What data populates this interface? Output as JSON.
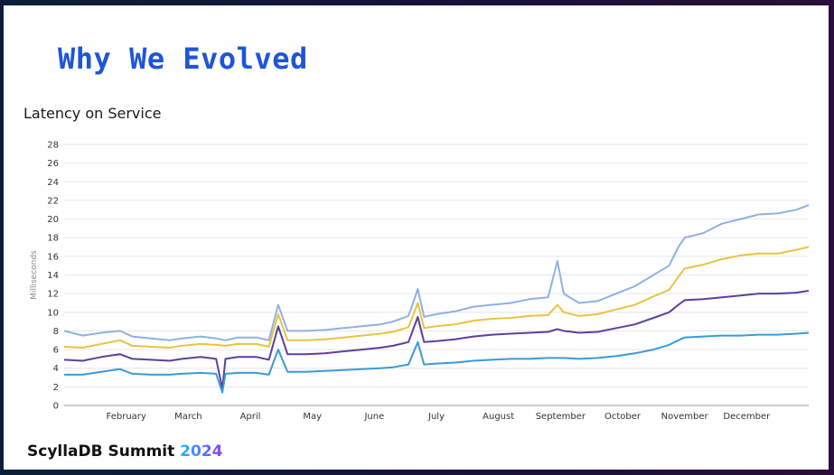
{
  "slide": {
    "title": "Why We Evolved",
    "footer_brand": "ScyllaDB Summit",
    "footer_year": "2024"
  },
  "chart_data": {
    "type": "line",
    "title": "Latency on Service",
    "ylabel": "Milliseconds",
    "xlabel": "",
    "ylim": [
      0,
      28
    ],
    "yticks": [
      0,
      2,
      4,
      6,
      8,
      10,
      12,
      14,
      16,
      18,
      20,
      22,
      24,
      26,
      28
    ],
    "x_tick_labels": [
      "February",
      "March",
      "April",
      "May",
      "June",
      "July",
      "August",
      "September",
      "October",
      "November",
      "December"
    ],
    "grid": true,
    "legend": "none",
    "x_range_months": [
      0,
      12
    ],
    "series": [
      {
        "color": "#8eb1e6",
        "points": [
          [
            0,
            8.0
          ],
          [
            0.3,
            7.5
          ],
          [
            0.6,
            7.8
          ],
          [
            0.9,
            8.0
          ],
          [
            1.1,
            7.4
          ],
          [
            1.4,
            7.2
          ],
          [
            1.7,
            7.0
          ],
          [
            1.9,
            7.2
          ],
          [
            2.2,
            7.4
          ],
          [
            2.45,
            7.2
          ],
          [
            2.6,
            7.0
          ],
          [
            2.8,
            7.3
          ],
          [
            3.1,
            7.3
          ],
          [
            3.3,
            7.0
          ],
          [
            3.45,
            10.8
          ],
          [
            3.6,
            8.0
          ],
          [
            3.9,
            8.0
          ],
          [
            4.2,
            8.1
          ],
          [
            4.5,
            8.3
          ],
          [
            4.8,
            8.5
          ],
          [
            5.1,
            8.7
          ],
          [
            5.3,
            9.0
          ],
          [
            5.55,
            9.6
          ],
          [
            5.7,
            12.5
          ],
          [
            5.8,
            9.5
          ],
          [
            6.0,
            9.8
          ],
          [
            6.3,
            10.1
          ],
          [
            6.6,
            10.6
          ],
          [
            6.9,
            10.8
          ],
          [
            7.2,
            11.0
          ],
          [
            7.5,
            11.4
          ],
          [
            7.8,
            11.6
          ],
          [
            7.95,
            15.5
          ],
          [
            8.05,
            12.0
          ],
          [
            8.3,
            11.0
          ],
          [
            8.6,
            11.2
          ],
          [
            8.9,
            12.0
          ],
          [
            9.2,
            12.8
          ],
          [
            9.5,
            14.0
          ],
          [
            9.75,
            15.0
          ],
          [
            9.9,
            17.0
          ],
          [
            10.0,
            18.0
          ],
          [
            10.3,
            18.5
          ],
          [
            10.6,
            19.5
          ],
          [
            10.9,
            20.0
          ],
          [
            11.2,
            20.5
          ],
          [
            11.5,
            20.6
          ],
          [
            11.8,
            21.0
          ],
          [
            12.0,
            21.5
          ]
        ]
      },
      {
        "color": "#e8c440",
        "points": [
          [
            0,
            6.3
          ],
          [
            0.3,
            6.2
          ],
          [
            0.6,
            6.6
          ],
          [
            0.9,
            7.0
          ],
          [
            1.1,
            6.4
          ],
          [
            1.4,
            6.3
          ],
          [
            1.7,
            6.2
          ],
          [
            1.9,
            6.4
          ],
          [
            2.2,
            6.6
          ],
          [
            2.45,
            6.5
          ],
          [
            2.6,
            6.4
          ],
          [
            2.8,
            6.6
          ],
          [
            3.1,
            6.6
          ],
          [
            3.3,
            6.3
          ],
          [
            3.45,
            9.8
          ],
          [
            3.6,
            7.0
          ],
          [
            3.9,
            7.0
          ],
          [
            4.2,
            7.1
          ],
          [
            4.5,
            7.3
          ],
          [
            4.8,
            7.5
          ],
          [
            5.1,
            7.7
          ],
          [
            5.3,
            7.9
          ],
          [
            5.55,
            8.4
          ],
          [
            5.7,
            11.0
          ],
          [
            5.8,
            8.3
          ],
          [
            6.0,
            8.5
          ],
          [
            6.3,
            8.7
          ],
          [
            6.6,
            9.1
          ],
          [
            6.9,
            9.3
          ],
          [
            7.2,
            9.4
          ],
          [
            7.5,
            9.6
          ],
          [
            7.8,
            9.7
          ],
          [
            7.95,
            10.8
          ],
          [
            8.05,
            10.0
          ],
          [
            8.3,
            9.6
          ],
          [
            8.6,
            9.8
          ],
          [
            8.9,
            10.3
          ],
          [
            9.2,
            10.8
          ],
          [
            9.5,
            11.7
          ],
          [
            9.75,
            12.4
          ],
          [
            9.9,
            13.8
          ],
          [
            10.0,
            14.7
          ],
          [
            10.3,
            15.1
          ],
          [
            10.6,
            15.7
          ],
          [
            10.9,
            16.1
          ],
          [
            11.2,
            16.3
          ],
          [
            11.5,
            16.3
          ],
          [
            11.8,
            16.7
          ],
          [
            12.0,
            17.0
          ]
        ]
      },
      {
        "color": "#5b3fa0",
        "points": [
          [
            0,
            4.9
          ],
          [
            0.3,
            4.8
          ],
          [
            0.6,
            5.2
          ],
          [
            0.9,
            5.5
          ],
          [
            1.1,
            5.0
          ],
          [
            1.4,
            4.9
          ],
          [
            1.7,
            4.8
          ],
          [
            1.9,
            5.0
          ],
          [
            2.2,
            5.2
          ],
          [
            2.45,
            5.0
          ],
          [
            2.55,
            1.8
          ],
          [
            2.6,
            5.0
          ],
          [
            2.8,
            5.2
          ],
          [
            3.1,
            5.2
          ],
          [
            3.3,
            4.9
          ],
          [
            3.45,
            8.5
          ],
          [
            3.6,
            5.5
          ],
          [
            3.9,
            5.5
          ],
          [
            4.2,
            5.6
          ],
          [
            4.5,
            5.8
          ],
          [
            4.8,
            6.0
          ],
          [
            5.1,
            6.2
          ],
          [
            5.3,
            6.4
          ],
          [
            5.55,
            6.8
          ],
          [
            5.7,
            9.5
          ],
          [
            5.8,
            6.8
          ],
          [
            6.0,
            6.9
          ],
          [
            6.3,
            7.1
          ],
          [
            6.6,
            7.4
          ],
          [
            6.9,
            7.6
          ],
          [
            7.2,
            7.7
          ],
          [
            7.5,
            7.8
          ],
          [
            7.8,
            7.9
          ],
          [
            7.95,
            8.2
          ],
          [
            8.05,
            8.0
          ],
          [
            8.3,
            7.8
          ],
          [
            8.6,
            7.9
          ],
          [
            8.9,
            8.3
          ],
          [
            9.2,
            8.7
          ],
          [
            9.5,
            9.4
          ],
          [
            9.75,
            10.0
          ],
          [
            9.9,
            10.8
          ],
          [
            10.0,
            11.3
          ],
          [
            10.3,
            11.4
          ],
          [
            10.6,
            11.6
          ],
          [
            10.9,
            11.8
          ],
          [
            11.2,
            12.0
          ],
          [
            11.5,
            12.0
          ],
          [
            11.8,
            12.1
          ],
          [
            12.0,
            12.3
          ]
        ]
      },
      {
        "color": "#3a9ad8",
        "points": [
          [
            0,
            3.3
          ],
          [
            0.3,
            3.3
          ],
          [
            0.6,
            3.6
          ],
          [
            0.9,
            3.9
          ],
          [
            1.1,
            3.4
          ],
          [
            1.4,
            3.3
          ],
          [
            1.7,
            3.3
          ],
          [
            1.9,
            3.4
          ],
          [
            2.2,
            3.5
          ],
          [
            2.45,
            3.4
          ],
          [
            2.55,
            1.4
          ],
          [
            2.6,
            3.4
          ],
          [
            2.8,
            3.5
          ],
          [
            3.1,
            3.5
          ],
          [
            3.3,
            3.3
          ],
          [
            3.45,
            6.0
          ],
          [
            3.6,
            3.6
          ],
          [
            3.9,
            3.6
          ],
          [
            4.2,
            3.7
          ],
          [
            4.5,
            3.8
          ],
          [
            4.8,
            3.9
          ],
          [
            5.1,
            4.0
          ],
          [
            5.3,
            4.1
          ],
          [
            5.55,
            4.4
          ],
          [
            5.7,
            6.8
          ],
          [
            5.8,
            4.4
          ],
          [
            6.0,
            4.5
          ],
          [
            6.3,
            4.6
          ],
          [
            6.6,
            4.8
          ],
          [
            6.9,
            4.9
          ],
          [
            7.2,
            5.0
          ],
          [
            7.5,
            5.0
          ],
          [
            7.8,
            5.1
          ],
          [
            7.95,
            5.1
          ],
          [
            8.05,
            5.1
          ],
          [
            8.3,
            5.0
          ],
          [
            8.6,
            5.1
          ],
          [
            8.9,
            5.3
          ],
          [
            9.2,
            5.6
          ],
          [
            9.5,
            6.0
          ],
          [
            9.75,
            6.5
          ],
          [
            9.9,
            7.0
          ],
          [
            10.0,
            7.3
          ],
          [
            10.3,
            7.4
          ],
          [
            10.6,
            7.5
          ],
          [
            10.9,
            7.5
          ],
          [
            11.2,
            7.6
          ],
          [
            11.5,
            7.6
          ],
          [
            11.8,
            7.7
          ],
          [
            12.0,
            7.8
          ]
        ]
      }
    ]
  }
}
